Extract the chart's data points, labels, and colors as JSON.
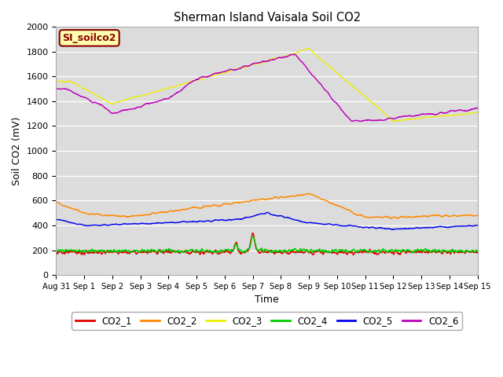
{
  "title": "Sherman Island Vaisala Soil CO2",
  "ylabel": "Soil CO2 (mV)",
  "xlabel": "Time",
  "ylim": [
    0,
    2000
  ],
  "yticks": [
    0,
    200,
    400,
    600,
    800,
    1000,
    1200,
    1400,
    1600,
    1800,
    2000
  ],
  "background_color": "#dcdcdc",
  "annotation_text": "SI_soilco2",
  "annotation_facecolor": "#ffffb0",
  "annotation_edgecolor": "#8b0000",
  "annotation_textcolor": "#8b0000",
  "series_colors": {
    "CO2_1": "#dd0000",
    "CO2_2": "#ff8800",
    "CO2_3": "#eeee00",
    "CO2_4": "#00cc00",
    "CO2_5": "#0000ee",
    "CO2_6": "#bb00bb"
  },
  "xtick_labels": [
    "Aug 31",
    "Sep 1",
    "Sep 2",
    "Sep 3",
    "Sep 4",
    "Sep 5",
    "Sep 6",
    "Sep 7",
    "Sep 8",
    "Sep 9",
    "Sep 10",
    "Sep 11",
    "Sep 12",
    "Sep 13",
    "Sep 14",
    "Sep 15"
  ],
  "xtick_positions": [
    0,
    1,
    2,
    3,
    4,
    5,
    6,
    7,
    8,
    9,
    10,
    11,
    12,
    13,
    14,
    15
  ],
  "figsize": [
    6.4,
    4.8
  ],
  "dpi": 100
}
